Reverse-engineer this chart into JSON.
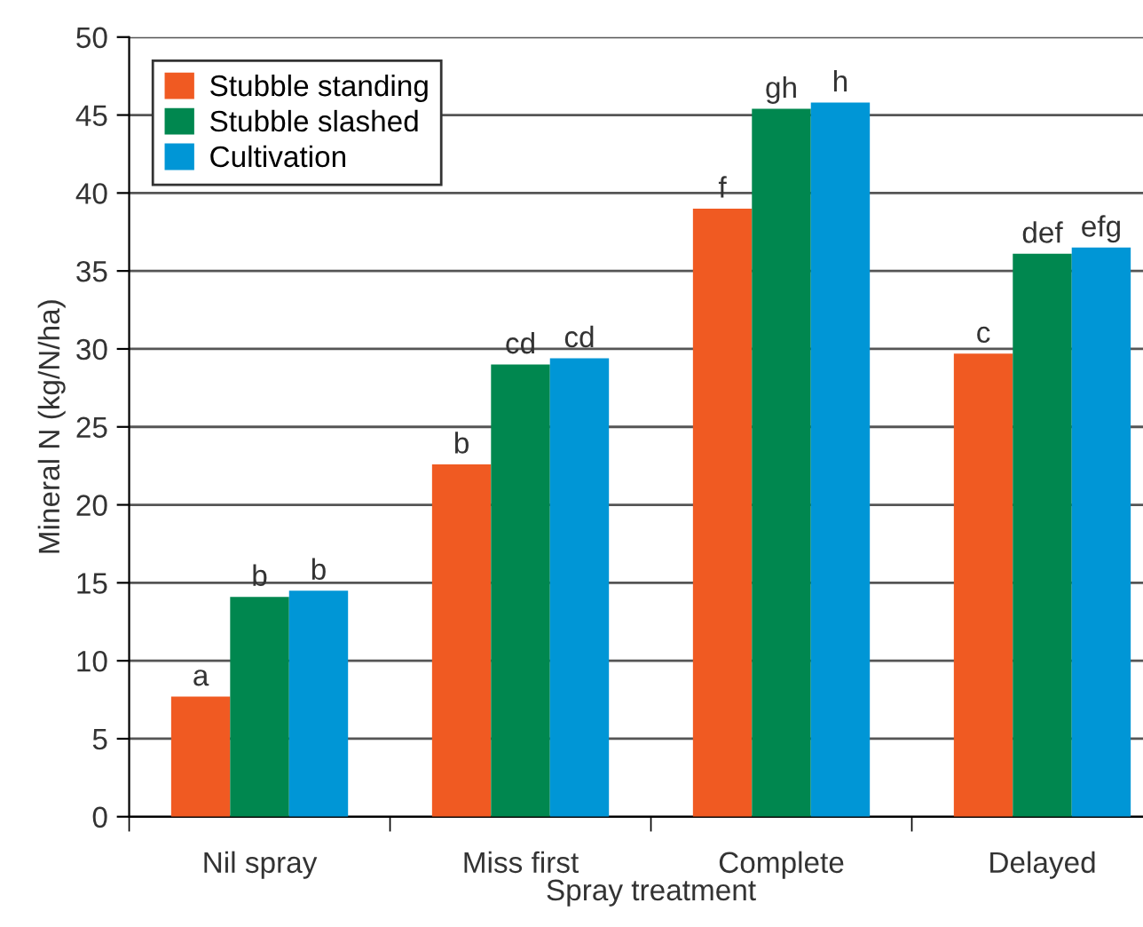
{
  "chart_data": {
    "type": "bar",
    "xlabel": "Spray treatment",
    "ylabel": "Mineral N (kg/N/ha)",
    "categories": [
      "Nil spray",
      "Miss first",
      "Complete",
      "Delayed"
    ],
    "series": [
      {
        "name": "Stubble standing",
        "color": "#f05a22",
        "values": [
          7.7,
          22.6,
          39.0,
          29.7
        ],
        "value_labels": [
          "a",
          "b",
          "f",
          "c"
        ]
      },
      {
        "name": "Stubble slashed",
        "color": "#00874f",
        "values": [
          14.1,
          29.0,
          45.4,
          36.1
        ],
        "value_labels": [
          "b",
          "cd",
          "gh",
          "def"
        ]
      },
      {
        "name": "Cultivation",
        "color": "#0096d6",
        "values": [
          14.5,
          29.4,
          45.8,
          36.5
        ],
        "value_labels": [
          "b",
          "cd",
          "h",
          "efg"
        ]
      }
    ],
    "ylim": [
      0,
      50
    ],
    "yticks": [
      0,
      5,
      10,
      15,
      20,
      25,
      30,
      35,
      40,
      45,
      50
    ],
    "grid": "y",
    "legend": "top left"
  }
}
